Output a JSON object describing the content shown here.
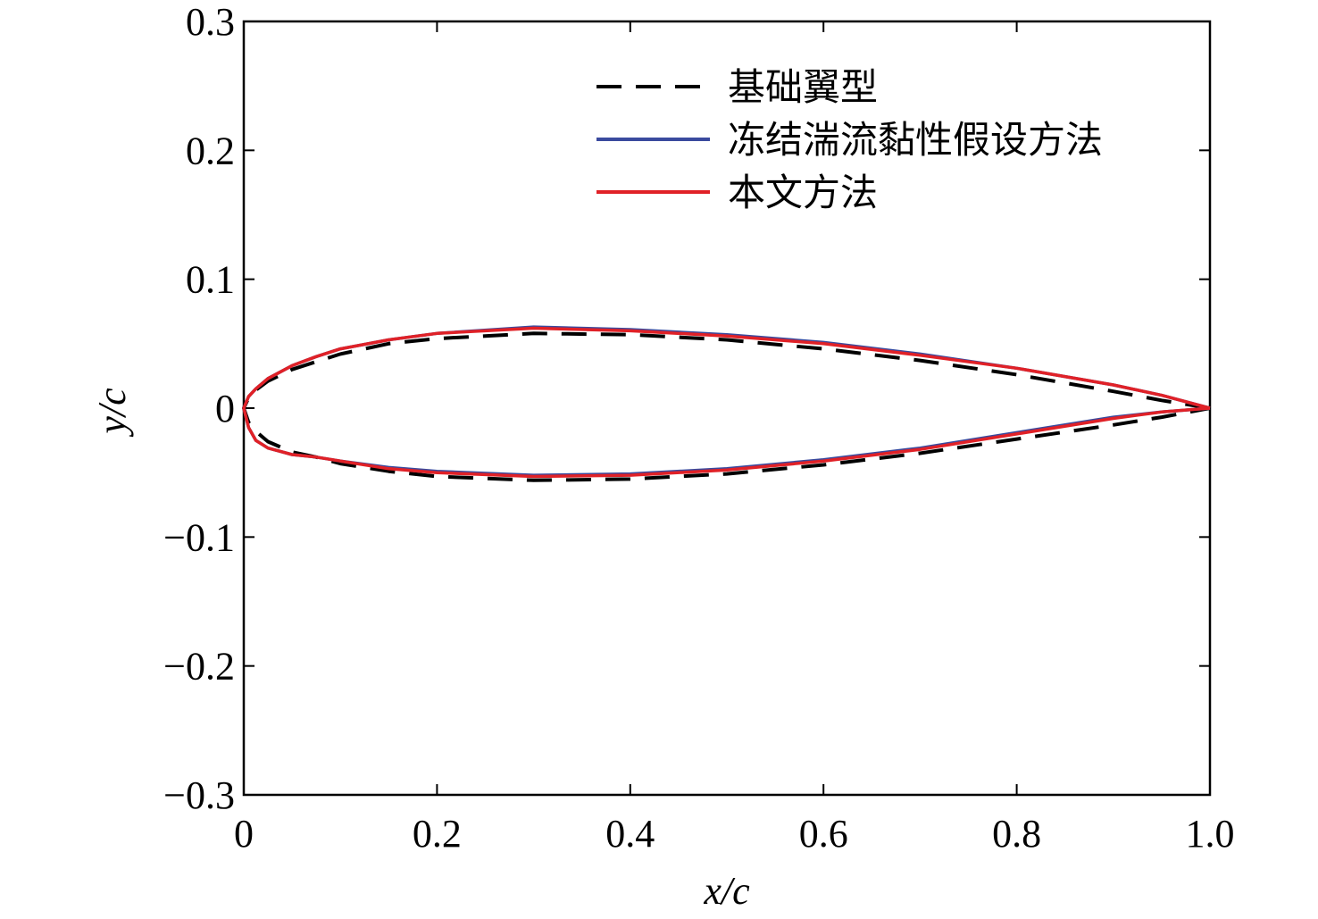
{
  "chart_data": {
    "type": "line",
    "xlabel": "x/c",
    "ylabel": "y/c",
    "xlim": [
      0,
      1.0
    ],
    "ylim": [
      -0.3,
      0.3
    ],
    "xticks": [
      0,
      0.2,
      0.4,
      0.6,
      0.8,
      1.0
    ],
    "xtick_labels": [
      "0",
      "0.2",
      "0.4",
      "0.6",
      "0.8",
      "1.0"
    ],
    "yticks": [
      -0.3,
      -0.2,
      -0.1,
      0,
      0.1,
      0.2,
      0.3
    ],
    "ytick_labels": [
      "−0.3",
      "−0.2",
      "−0.1",
      "0",
      "0.1",
      "0.2",
      "0.3"
    ],
    "grid": false,
    "legend_position": "top-right",
    "series": [
      {
        "name": "基础翼型",
        "color": "#000000",
        "style": "dashed",
        "x": [
          1.0,
          0.95,
          0.9,
          0.8,
          0.7,
          0.6,
          0.5,
          0.4,
          0.3,
          0.2,
          0.15,
          0.1,
          0.075,
          0.05,
          0.025,
          0.0125,
          0.005,
          0.0,
          0.005,
          0.0125,
          0.025,
          0.05,
          0.075,
          0.1,
          0.15,
          0.2,
          0.3,
          0.4,
          0.5,
          0.6,
          0.7,
          0.8,
          0.9,
          0.95,
          1.0
        ],
        "y": [
          0.0,
          0.006,
          0.013,
          0.026,
          0.037,
          0.046,
          0.053,
          0.057,
          0.058,
          0.054,
          0.05,
          0.042,
          0.036,
          0.03,
          0.021,
          0.014,
          0.008,
          0.0,
          -0.011,
          -0.018,
          -0.026,
          -0.034,
          -0.038,
          -0.043,
          -0.049,
          -0.053,
          -0.056,
          -0.055,
          -0.051,
          -0.044,
          -0.035,
          -0.024,
          -0.013,
          -0.007,
          0.0
        ]
      },
      {
        "name": "冻结湍流黏性假设方法",
        "color": "#3a4a9e",
        "style": "solid",
        "x": [
          1.0,
          0.95,
          0.9,
          0.8,
          0.7,
          0.6,
          0.5,
          0.4,
          0.3,
          0.2,
          0.15,
          0.1,
          0.075,
          0.05,
          0.025,
          0.0125,
          0.005,
          0.0,
          0.005,
          0.0125,
          0.025,
          0.05,
          0.075,
          0.1,
          0.15,
          0.2,
          0.3,
          0.4,
          0.5,
          0.6,
          0.7,
          0.8,
          0.9,
          0.95,
          1.0
        ],
        "y": [
          0.0,
          0.01,
          0.018,
          0.031,
          0.042,
          0.051,
          0.057,
          0.061,
          0.063,
          0.058,
          0.053,
          0.046,
          0.04,
          0.033,
          0.023,
          0.015,
          0.009,
          0.0,
          -0.015,
          -0.025,
          -0.031,
          -0.036,
          -0.038,
          -0.041,
          -0.046,
          -0.049,
          -0.052,
          -0.051,
          -0.047,
          -0.04,
          -0.031,
          -0.019,
          -0.007,
          -0.003,
          0.0
        ]
      },
      {
        "name": "本文方法",
        "color": "#e02127",
        "style": "solid",
        "x": [
          1.0,
          0.95,
          0.9,
          0.8,
          0.7,
          0.6,
          0.5,
          0.4,
          0.3,
          0.2,
          0.15,
          0.1,
          0.075,
          0.05,
          0.025,
          0.0125,
          0.005,
          0.0,
          0.005,
          0.0125,
          0.025,
          0.05,
          0.075,
          0.1,
          0.15,
          0.2,
          0.3,
          0.4,
          0.5,
          0.6,
          0.7,
          0.8,
          0.9,
          0.95,
          1.0
        ],
        "y": [
          0.0,
          0.01,
          0.018,
          0.031,
          0.041,
          0.05,
          0.056,
          0.06,
          0.062,
          0.058,
          0.053,
          0.046,
          0.04,
          0.033,
          0.023,
          0.015,
          0.009,
          0.0,
          -0.015,
          -0.025,
          -0.031,
          -0.036,
          -0.038,
          -0.041,
          -0.047,
          -0.05,
          -0.053,
          -0.052,
          -0.048,
          -0.041,
          -0.032,
          -0.02,
          -0.008,
          -0.003,
          0.0
        ]
      }
    ]
  }
}
